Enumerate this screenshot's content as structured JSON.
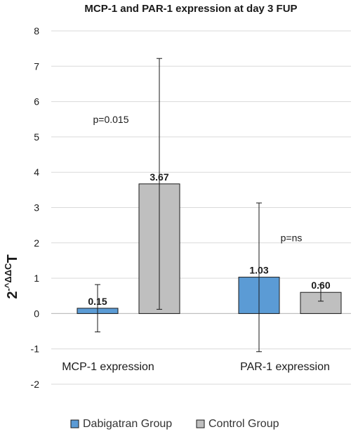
{
  "chart_data": {
    "type": "bar",
    "title": "MCP-1 and PAR-1 expression at day 3 FUP",
    "ylabel": "2^-ΔΔCT",
    "ylabel_main": "2",
    "ylabel_sup": "-^ΔΔC",
    "ylabel_sub": "T",
    "ylim": [
      -2,
      8
    ],
    "yticks": [
      "-2",
      "-1",
      "0",
      "1",
      "2",
      "3",
      "4",
      "5",
      "6",
      "7",
      "8"
    ],
    "grid": true,
    "legend_position": "bottom",
    "categories": [
      "MCP-1 expression",
      "PAR-1 expression"
    ],
    "series": [
      {
        "name": "Dabigatran Group",
        "color": "#5b9bd5",
        "values": [
          0.15,
          1.03
        ],
        "labels": [
          "0.15",
          "1.03"
        ],
        "error_low": [
          -0.52,
          -1.08
        ],
        "error_high": [
          0.82,
          3.13
        ]
      },
      {
        "name": "Control Group",
        "color": "#bfbfbf",
        "values": [
          3.67,
          0.6
        ],
        "labels": [
          "3.67",
          "0.60"
        ],
        "error_low": [
          0.12,
          0.35
        ],
        "error_high": [
          7.22,
          0.82
        ]
      }
    ],
    "annotations": [
      {
        "text": "p=0.015",
        "category": 0,
        "y": 5.5
      },
      {
        "text": "p=ns",
        "category": 1,
        "y": 2.15
      }
    ]
  }
}
